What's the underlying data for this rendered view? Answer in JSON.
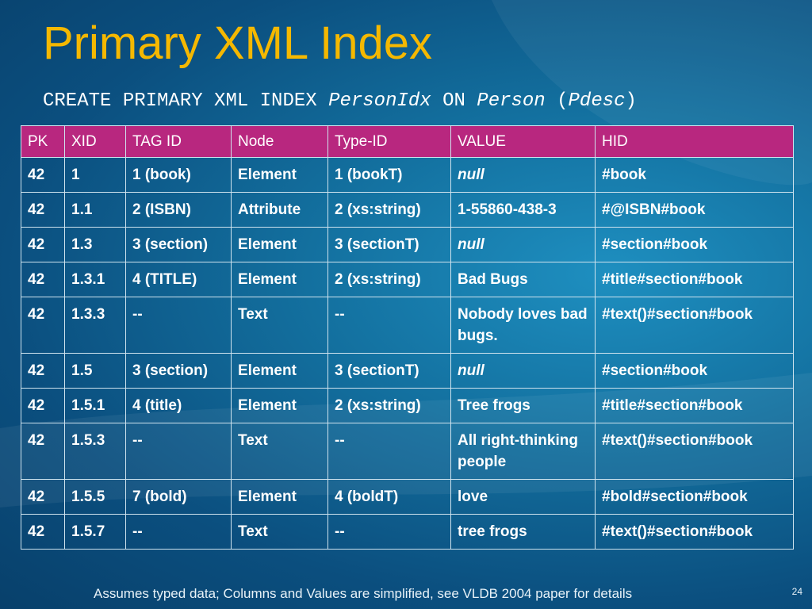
{
  "title": "Primary XML Index",
  "subtitle": {
    "part1": "CREATE PRIMARY XML INDEX ",
    "index_name": "PersonIdx",
    "part2": " ON ",
    "table_name": "Person",
    "part3": " (",
    "column_name": "Pdesc",
    "part4": ")"
  },
  "table": {
    "headers": [
      "PK",
      "XID",
      "TAG ID",
      "Node",
      "Type-ID",
      "VALUE",
      "HID"
    ],
    "rows": [
      [
        "42",
        "1",
        "1 (book)",
        "Element",
        "1 (bookT)",
        "null",
        "#book"
      ],
      [
        "42",
        "1.1",
        "2 (ISBN)",
        "Attribute",
        "2 (xs:string)",
        "1-55860-438-3",
        "#@ISBN#book"
      ],
      [
        "42",
        "1.3",
        "3 (section)",
        "Element",
        "3 (sectionT)",
        "null",
        "#section#book"
      ],
      [
        "42",
        "1.3.1",
        "4 (TITLE)",
        "Element",
        "2 (xs:string)",
        "Bad Bugs",
        "#title#section#book"
      ],
      [
        "42",
        "1.3.3",
        "--",
        "Text",
        "--",
        "Nobody loves bad bugs.",
        "#text()#section#book"
      ],
      [
        "42",
        "1.5",
        "3 (section)",
        "Element",
        "3 (sectionT)",
        "null",
        "#section#book"
      ],
      [
        "42",
        "1.5.1",
        "4 (title)",
        "Element",
        "2 (xs:string)",
        "Tree frogs",
        "#title#section#book"
      ],
      [
        "42",
        "1.5.3",
        "--",
        "Text",
        "--",
        "All right-thinking people",
        "#text()#section#book"
      ],
      [
        "42",
        "1.5.5",
        "7 (bold)",
        "Element",
        "4 (boldT)",
        "love",
        "#bold#section#book"
      ],
      [
        "42",
        "1.5.7",
        "--",
        "Text",
        "--",
        "tree frogs",
        "#text()#section#book"
      ]
    ]
  },
  "footer": "Assumes typed data; Columns and Values are simplified, see VLDB 2004 paper for details",
  "page_number": "24"
}
